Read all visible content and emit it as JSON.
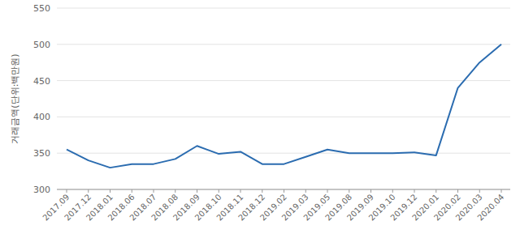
{
  "chart_data": {
    "type": "line",
    "y_label": "거래금액(단위:백만원)",
    "categories": [
      "2017.09",
      "2017.12",
      "2018.01",
      "2018.06",
      "2018.07",
      "2018.08",
      "2018.09",
      "2018.10",
      "2018.11",
      "2018.12",
      "2019.02",
      "2019.03",
      "2019.05",
      "2019.08",
      "2019.09",
      "2019.10",
      "2019.12",
      "2020.01",
      "2020.02",
      "2020.03",
      "2020.04"
    ],
    "values": [
      355,
      340,
      330,
      335,
      335,
      342,
      360,
      349,
      352,
      335,
      335,
      345,
      355,
      350,
      350,
      350,
      351,
      347,
      440,
      475,
      500
    ],
    "color": "#2b6cb0",
    "ylim": [
      300,
      550
    ],
    "yticks": [
      300,
      350,
      400,
      450,
      500,
      550
    ],
    "grid": true
  }
}
